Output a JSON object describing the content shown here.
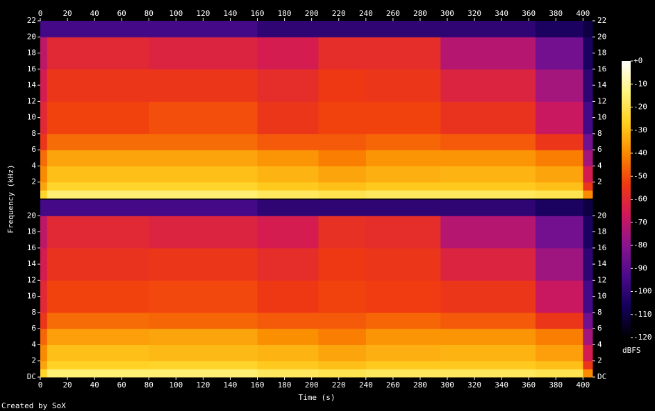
{
  "chart_data": {
    "type": "spectrogram",
    "x_label": "Time (s)",
    "y_label": "Frequency (kHz)",
    "credit": "Created by SoX",
    "xlim": [
      0,
      407
    ],
    "xticks": [
      0,
      20,
      40,
      60,
      80,
      100,
      120,
      140,
      160,
      180,
      200,
      220,
      240,
      260,
      280,
      300,
      320,
      340,
      360,
      380,
      400
    ],
    "ylim": [
      0,
      22
    ],
    "time_bins": [
      0,
      5,
      80,
      160,
      205,
      240,
      295,
      365,
      400,
      407
    ],
    "freq_bins": [
      0,
      1,
      2,
      4,
      6,
      8,
      12,
      16,
      20,
      22
    ],
    "channels": [
      {
        "yticks": [
          2,
          4,
          6,
          8,
          10,
          12,
          14,
          16,
          18,
          20,
          22
        ],
        "values": [
          [
            -25,
            -35,
            -40,
            -45,
            -55,
            -60,
            -65,
            -70,
            -95
          ],
          [
            -15,
            -25,
            -30,
            -35,
            -45,
            -52,
            -55,
            -60,
            -95
          ],
          [
            -15,
            -25,
            -30,
            -35,
            -45,
            -50,
            -55,
            -62,
            -95
          ],
          [
            -18,
            -28,
            -32,
            -38,
            -48,
            -55,
            -58,
            -65,
            -100
          ],
          [
            -20,
            -30,
            -35,
            -42,
            -48,
            -52,
            -54,
            -58,
            -100
          ],
          [
            -18,
            -28,
            -33,
            -38,
            -46,
            -52,
            -55,
            -58,
            -100
          ],
          [
            -18,
            -28,
            -32,
            -38,
            -48,
            -56,
            -62,
            -72,
            -100
          ],
          [
            -20,
            -30,
            -35,
            -42,
            -55,
            -68,
            -75,
            -85,
            -105
          ],
          [
            -40,
            -55,
            -65,
            -75,
            -85,
            -95,
            -100,
            -105,
            -110
          ]
        ]
      },
      {
        "yticks": [
          {
            "value": 0,
            "label": "DC"
          },
          2,
          4,
          6,
          8,
          10,
          12,
          14,
          16,
          18,
          20
        ],
        "values": [
          [
            -25,
            -35,
            -40,
            -46,
            -55,
            -60,
            -65,
            -70,
            -95
          ],
          [
            -15,
            -26,
            -30,
            -36,
            -45,
            -52,
            -56,
            -60,
            -95
          ],
          [
            -15,
            -25,
            -31,
            -35,
            -46,
            -51,
            -55,
            -62,
            -95
          ],
          [
            -18,
            -28,
            -32,
            -39,
            -48,
            -54,
            -58,
            -65,
            -100
          ],
          [
            -20,
            -30,
            -35,
            -42,
            -48,
            -52,
            -54,
            -57,
            -100
          ],
          [
            -18,
            -28,
            -33,
            -38,
            -46,
            -53,
            -55,
            -58,
            -100
          ],
          [
            -18,
            -28,
            -32,
            -38,
            -48,
            -55,
            -62,
            -72,
            -100
          ],
          [
            -20,
            -30,
            -36,
            -42,
            -55,
            -68,
            -76,
            -85,
            -105
          ],
          [
            -40,
            -55,
            -65,
            -75,
            -85,
            -95,
            -100,
            -105,
            -110
          ]
        ]
      }
    ],
    "colorbar": {
      "label": "dBFS",
      "lim": [
        -120,
        0
      ],
      "ticks": [
        {
          "value": 0,
          "label": "+0"
        },
        -10,
        -20,
        -30,
        -40,
        -50,
        -60,
        -70,
        -80,
        -90,
        -100,
        -110,
        -120
      ],
      "colors": [
        "#000000",
        "#14005a",
        "#4a0a8c",
        "#8a1490",
        "#d0185a",
        "#f03a10",
        "#fa8a00",
        "#ffd020",
        "#fff580",
        "#ffffff"
      ]
    }
  }
}
